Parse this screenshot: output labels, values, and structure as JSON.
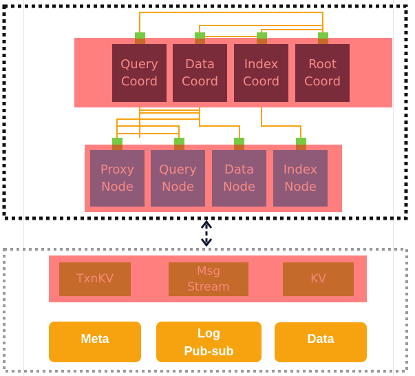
{
  "coordinators": [
    {
      "label": "Query\nCoord"
    },
    {
      "label": "Data\nCoord"
    },
    {
      "label": "Index\nCoord"
    },
    {
      "label": "Root\nCoord"
    }
  ],
  "nodes": [
    {
      "label": "Proxy\nNode"
    },
    {
      "label": "Query\nNode"
    },
    {
      "label": "Data\nNode"
    },
    {
      "label": "Index\nNode"
    }
  ],
  "storage_services": [
    {
      "label": "TxnKV"
    },
    {
      "label": "Msg\nStream"
    },
    {
      "label": "KV"
    }
  ],
  "storage_layers": [
    {
      "label": "Meta"
    },
    {
      "label": "Log\nPub-sub"
    },
    {
      "label": "Data"
    }
  ],
  "colors": {
    "band": "#ff7f7f",
    "coord": "#7a2c3a",
    "node": "#8f5a78",
    "storage_service": "#c46a2a",
    "storage_layer": "#f7a30f",
    "wire": "#f7a30f",
    "connector": "#7ac943"
  }
}
